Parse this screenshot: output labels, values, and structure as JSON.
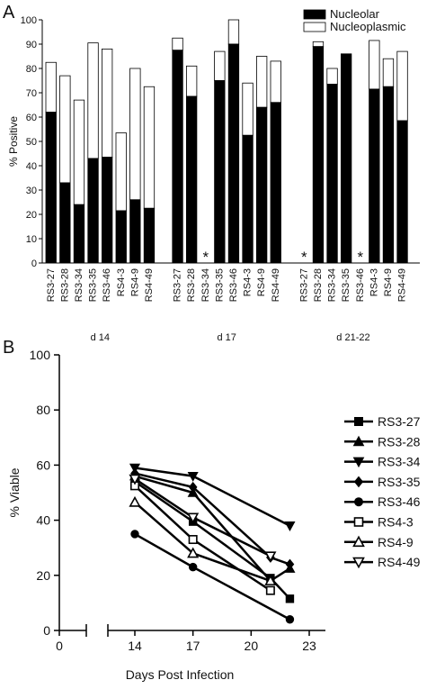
{
  "panel_a_letter": "A",
  "panel_b_letter": "B",
  "chart_data": [
    {
      "type": "bar",
      "stacked": true,
      "ylabel": "% Positive",
      "ylim": [
        0,
        100
      ],
      "yticks": [
        0,
        10,
        20,
        30,
        40,
        50,
        60,
        70,
        80,
        90,
        100
      ],
      "legend_position": "top-right",
      "series": [
        {
          "name": "Nucleolar",
          "color": "#000000"
        },
        {
          "name": "Nucleoplasmic",
          "color": "#ffffff"
        }
      ],
      "missing_marker": "*",
      "groups": [
        {
          "label": "d 14",
          "categories": [
            "RS3-27",
            "RS3-28",
            "RS3-34",
            "RS3-35",
            "RS3-46",
            "RS4-3",
            "RS4-9",
            "RS4-49"
          ],
          "nucleolar": [
            62,
            33,
            24,
            43,
            43.5,
            21.5,
            26,
            22.5
          ],
          "total": [
            82.5,
            77,
            67,
            90.5,
            88,
            53.5,
            80,
            72.5
          ],
          "missing": [
            false,
            false,
            false,
            false,
            false,
            false,
            false,
            false
          ]
        },
        {
          "label": "d 17",
          "categories": [
            "RS3-27",
            "RS3-28",
            "RS3-34",
            "RS3-35",
            "RS3-46",
            "RS4-3",
            "RS4-9",
            "RS4-49"
          ],
          "nucleolar": [
            87.5,
            68.5,
            null,
            75,
            90,
            52.5,
            64,
            66
          ],
          "total": [
            92.5,
            81,
            null,
            87,
            100,
            74,
            85,
            83
          ],
          "missing": [
            false,
            false,
            true,
            false,
            false,
            false,
            false,
            false
          ]
        },
        {
          "label": "d 21-22",
          "categories": [
            "RS3-27",
            "RS3-28",
            "RS3-34",
            "RS3-35",
            "RS3-46",
            "RS4-3",
            "RS4-9",
            "RS4-49"
          ],
          "nucleolar": [
            null,
            89,
            73.5,
            86,
            null,
            71.5,
            72.5,
            58.5
          ],
          "total": [
            null,
            91,
            80,
            86,
            null,
            91.5,
            84,
            87
          ],
          "missing": [
            true,
            false,
            false,
            false,
            true,
            false,
            false,
            false
          ]
        }
      ]
    },
    {
      "type": "line",
      "xlabel": "Days Post Infection",
      "ylabel": "% Viable",
      "xlim": [
        0,
        23
      ],
      "ylim": [
        0,
        100
      ],
      "xticks": [
        0,
        14,
        17,
        20,
        23
      ],
      "yticks": [
        0,
        20,
        40,
        60,
        80,
        100
      ],
      "axis_break": true,
      "legend_position": "right",
      "x": [
        14,
        17,
        21,
        22
      ],
      "series": [
        {
          "name": "RS3-27",
          "marker": "square-filled",
          "values": [
            54,
            39.5,
            19,
            11.5
          ]
        },
        {
          "name": "RS3-28",
          "marker": "triangle-up-filled",
          "values": [
            56,
            50,
            18,
            22.5
          ]
        },
        {
          "name": "RS3-34",
          "marker": "triangle-down-filled",
          "values": [
            59,
            56,
            null,
            38
          ]
        },
        {
          "name": "RS3-35",
          "marker": "diamond-filled",
          "values": [
            57,
            52,
            26.5,
            24
          ]
        },
        {
          "name": "RS3-46",
          "marker": "circle-filled",
          "values": [
            35,
            23,
            null,
            4
          ]
        },
        {
          "name": "RS4-3",
          "marker": "square-open",
          "values": [
            52.5,
            33,
            14.5,
            null
          ]
        },
        {
          "name": "RS4-9",
          "marker": "triangle-up-open",
          "values": [
            46.5,
            28,
            18,
            null
          ]
        },
        {
          "name": "RS4-49",
          "marker": "triangle-down-open",
          "values": [
            55,
            41,
            27,
            null
          ]
        }
      ]
    }
  ]
}
